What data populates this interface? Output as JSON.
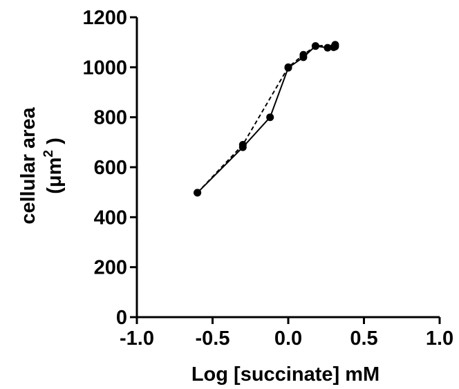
{
  "chart_data": {
    "type": "line",
    "title": "",
    "xlabel": "Log [succinate] mM",
    "ylabel_line1": "cellular area",
    "ylabel_line2_prefix": "(μm",
    "ylabel_line2_sup": "2",
    "ylabel_line2_suffix": " )",
    "xlim": [
      -1.0,
      1.0
    ],
    "ylim": [
      0,
      1200
    ],
    "x_ticks": [
      -1.0,
      -0.5,
      0.0,
      0.5,
      1.0
    ],
    "x_tick_labels": [
      "-1.0",
      "-0.5",
      "0.0",
      "0.5",
      "1.0"
    ],
    "y_ticks": [
      0,
      200,
      400,
      600,
      800,
      1000,
      1200
    ],
    "y_tick_labels": [
      "0",
      "200",
      "400",
      "600",
      "800",
      "1000",
      "1200"
    ],
    "grid": false,
    "series": [
      {
        "style": "solid",
        "x": [
          -0.6,
          -0.3,
          -0.12,
          0.0,
          0.1,
          0.18,
          0.26,
          0.3,
          0.31
        ],
        "y": [
          498,
          680,
          800,
          998,
          1040,
          1085,
          1078,
          1080,
          1083
        ]
      },
      {
        "style": "dashed",
        "x": [
          -0.6,
          -0.3,
          0.0,
          0.1,
          0.18,
          0.31
        ],
        "y": [
          498,
          690,
          1000,
          1050,
          1085,
          1090
        ]
      }
    ]
  }
}
